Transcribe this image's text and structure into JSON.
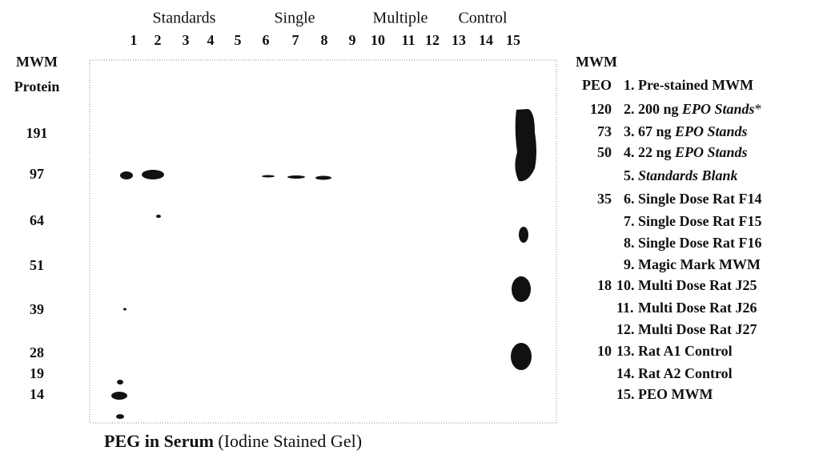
{
  "header": {
    "groups": [
      "Standards",
      "Single",
      "Multiple",
      "Control"
    ],
    "lanes": [
      "1",
      "2",
      "3",
      "4",
      "5",
      "6",
      "7",
      "8",
      "9",
      "10",
      "11",
      "12",
      "13",
      "14",
      "15"
    ]
  },
  "left": {
    "title_top": "MWM",
    "title_bottom": "Protein",
    "markers": [
      "191",
      "97",
      "64",
      "51",
      "39",
      "28",
      "19",
      "14"
    ]
  },
  "right": {
    "title_top": "MWM",
    "title_bottom": "PEO",
    "legend": [
      {
        "number": "1.",
        "text": "Pre-stained MWM"
      },
      {
        "peo": "120",
        "number": "2.",
        "text": "200 ng ",
        "italic": "EPO Stands",
        "after": "*"
      },
      {
        "peo": "73",
        "number": "3.",
        "text": "67 ng ",
        "italic": "EPO Stands"
      },
      {
        "peo": "50",
        "number": "4.",
        "text": "22 ng ",
        "italic": "EPO Stands"
      },
      {
        "number": "5.",
        "italic": "Standards Blank"
      },
      {
        "peo": "35",
        "number": "6.",
        "text": "Single Dose Rat F14"
      },
      {
        "number": "7.",
        "text": "Single Dose Rat F15"
      },
      {
        "number": "8.",
        "text": "Single Dose Rat F16"
      },
      {
        "number": "9.",
        "text": "Magic Mark MWM"
      },
      {
        "peo": "18",
        "number": "10.",
        "text": "Multi Dose Rat J25"
      },
      {
        "number": "11.",
        "text": "Multi Dose Rat J26"
      },
      {
        "number": "12.",
        "text": "Multi Dose Rat J27"
      },
      {
        "peo": "10",
        "number": "13.",
        "text": "Rat A1 Control"
      },
      {
        "number": "14.",
        "text": "Rat A2 Control"
      },
      {
        "number": "15.",
        "text": "PEO MWM"
      }
    ]
  },
  "caption": {
    "bold": "PEG in Serum",
    "normal": " (Iodine Stained Gel)"
  }
}
